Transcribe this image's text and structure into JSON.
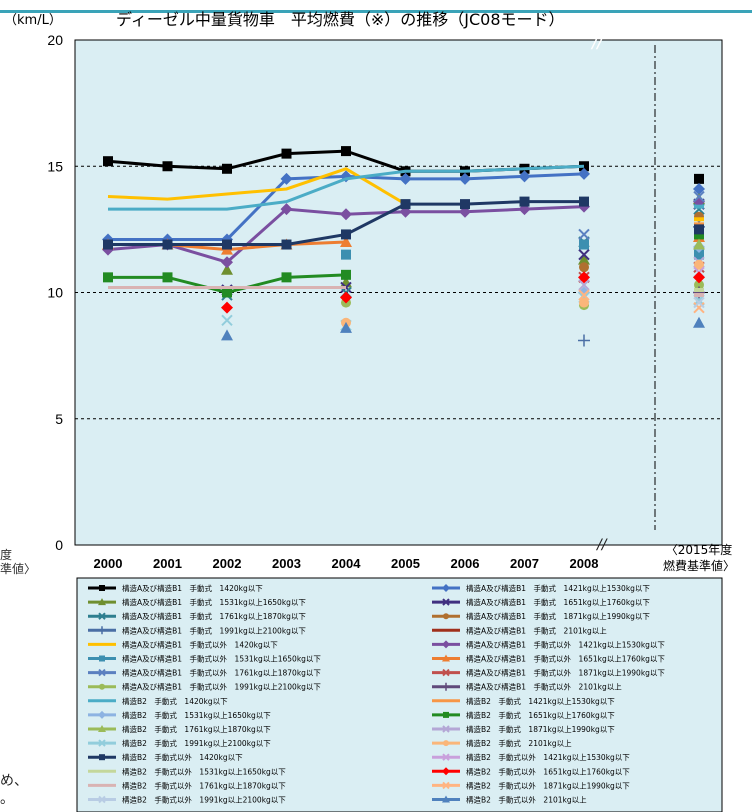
{
  "chart_data": {
    "type": "line",
    "title": "ディーゼル中量貨物車　平均燃費（※）の推移（JC08モード）",
    "unit_label": "（km/L）",
    "ylim": [
      0,
      20
    ],
    "y_ticks": [
      "0",
      "5",
      "10",
      "15",
      "20"
    ],
    "categories": [
      "2000",
      "2001",
      "2002",
      "2003",
      "2004",
      "2005",
      "2006",
      "2007",
      "2008"
    ],
    "standard_label_1": "〈2015年度",
    "standard_label_2": "燃費基準値〉",
    "grid_dashed_at": [
      5,
      10,
      15
    ],
    "series": [
      {
        "name": "構造A及び構造B1　手動式　1420kg以下",
        "color": "#000000",
        "marker": "square",
        "values": [
          15.2,
          15.0,
          14.9,
          15.5,
          15.6,
          14.8,
          14.8,
          14.9,
          15.0
        ],
        "std": 14.5
      },
      {
        "name": "構造A及び構造B1　手動式　1421kg以上1530kg以下",
        "color": "#4472c4",
        "marker": "diamond",
        "values": [
          12.1,
          12.1,
          12.1,
          14.5,
          14.6,
          14.5,
          14.5,
          14.6,
          14.7
        ],
        "std": 14.1
      },
      {
        "name": "構造A及び構造B1　手動式　1531kg以上1650kg以下",
        "color": "#6f8f2f",
        "marker": "triangle",
        "values": [
          null,
          null,
          10.9,
          null,
          10.4,
          null,
          null,
          null,
          11.3
        ],
        "std": 13.7
      },
      {
        "name": "構造A及び構造B1　手動式　1651kg以上1760kg以下",
        "color": "#403080",
        "marker": "x",
        "values": [
          null,
          null,
          10.1,
          null,
          10.2,
          null,
          null,
          null,
          11.5
        ],
        "std": 13.5
      },
      {
        "name": "構造A及び構造B1　手動式　1761kg以上1870kg以下",
        "color": "#2e7f8f",
        "marker": "x",
        "values": [
          null,
          null,
          9.9,
          null,
          10.0,
          null,
          null,
          null,
          12.0
        ],
        "std": 13.3
      },
      {
        "name": "構造A及び構造B1　手動式　1871kg以上1990kg以下",
        "color": "#b07030",
        "marker": "circle",
        "values": [
          null,
          null,
          null,
          null,
          null,
          null,
          null,
          null,
          11.0
        ],
        "std": 13.0
      },
      {
        "name": "構造A及び構造B1　手動式　1991kg以上2100kg以下",
        "color": "#4a6fa5",
        "marker": "plus",
        "values": [
          null,
          null,
          null,
          null,
          null,
          null,
          null,
          null,
          8.1
        ],
        "std": 12.6
      },
      {
        "name": "構造A及び構造B1　手動式　2101kg以上",
        "color": "#a0301c",
        "marker": "line",
        "values": [
          null,
          null,
          null,
          null,
          null,
          null,
          null,
          null,
          null
        ],
        "std": 12.4
      },
      {
        "name": "構造A及び構造B1　手動式以外　1420kg以下",
        "color": "#ffc000",
        "marker": "none",
        "values": [
          13.8,
          13.7,
          13.9,
          14.1,
          14.9,
          13.5,
          null,
          null,
          null
        ],
        "std": 12.9
      },
      {
        "name": "構造A及び構造B1　手動式以外　1421kg以上1530kg以下",
        "color": "#7a4fa0",
        "marker": "diamond",
        "values": [
          11.7,
          11.9,
          11.2,
          13.3,
          13.1,
          13.2,
          13.2,
          13.3,
          13.4
        ],
        "std": 13.6
      },
      {
        "name": "構造A及び構造B1　手動式以外　1531kg以上1650kg以下",
        "color": "#3c8fb0",
        "marker": "square",
        "values": [
          null,
          null,
          null,
          null,
          11.5,
          null,
          null,
          null,
          11.9
        ],
        "std": 11.5
      },
      {
        "name": "構造A及び構造B1　手動式以外　1651kg以上1760kg以下",
        "color": "#ed7d31",
        "marker": "triangle",
        "values": [
          11.9,
          11.9,
          11.7,
          11.9,
          12.0,
          null,
          null,
          null,
          null
        ],
        "std": 12.2
      },
      {
        "name": "構造A及び構造B1　手動式以外　1761kg以上1870kg以下",
        "color": "#5b80c0",
        "marker": "x",
        "values": [
          null,
          null,
          null,
          null,
          null,
          null,
          null,
          null,
          12.3
        ],
        "std": 13.8
      },
      {
        "name": "構造A及び構造B1　手動式以外　1871kg以上1990kg以下",
        "color": "#c0504d",
        "marker": "x",
        "values": [
          null,
          null,
          null,
          null,
          null,
          null,
          null,
          null,
          10.6
        ],
        "std": 11.0
      },
      {
        "name": "構造A及び構造B1　手動式以外　1991kg以上2100kg以下",
        "color": "#9bbb59",
        "marker": "circle",
        "values": [
          null,
          null,
          null,
          null,
          9.6,
          null,
          null,
          null,
          9.5
        ],
        "std": 10.3
      },
      {
        "name": "構造A及び構造B1　手動式以外　2101kg以上",
        "color": "#604a7b",
        "marker": "plus",
        "values": [
          null,
          null,
          null,
          null,
          null,
          null,
          null,
          null,
          null
        ],
        "std": 10.0
      },
      {
        "name": "構造B2　手動式　1420kg以下",
        "color": "#4bacc6",
        "marker": "none",
        "values": [
          13.3,
          13.3,
          13.3,
          13.6,
          14.5,
          14.8,
          14.8,
          14.9,
          15.0
        ],
        "std": 13.4
      },
      {
        "name": "構造B2　手動式　1421kg以上1530kg以下",
        "color": "#f79646",
        "marker": "none",
        "values": [
          null,
          null,
          null,
          null,
          null,
          null,
          null,
          null,
          null
        ],
        "std": 12.7
      },
      {
        "name": "構造B2　手動式　1531kg以上1650kg以下",
        "color": "#8db3e2",
        "marker": "diamond",
        "values": [
          null,
          null,
          null,
          null,
          null,
          null,
          null,
          null,
          10.0
        ],
        "std": 11.8
      },
      {
        "name": "構造B2　手動式　1651kg以上1760kg以下",
        "color": "#228b22",
        "marker": "square",
        "values": [
          10.6,
          10.6,
          10.0,
          10.6,
          10.7,
          null,
          null,
          null,
          null
        ],
        "std": 12.3
      },
      {
        "name": "構造B2　手動式　1761kg以上1870kg以下",
        "color": "#9bbb59",
        "marker": "triangle",
        "values": [
          null,
          null,
          null,
          null,
          null,
          null,
          null,
          null,
          null
        ],
        "std": 11.9
      },
      {
        "name": "構造B2　手動式　1871kg以上1990kg以下",
        "color": "#b4a7d6",
        "marker": "x",
        "values": [
          null,
          null,
          null,
          null,
          null,
          null,
          null,
          null,
          10.3
        ],
        "std": 11.2
      },
      {
        "name": "構造B2　手動式　1991kg以上2100kg以下",
        "color": "#92cddc",
        "marker": "x",
        "values": [
          null,
          null,
          8.9,
          null,
          8.7,
          null,
          null,
          null,
          9.8
        ],
        "std": 9.7
      },
      {
        "name": "構造B2　手動式　2101kg以上",
        "color": "#fab67a",
        "marker": "circle",
        "values": [
          null,
          null,
          null,
          null,
          8.8,
          null,
          null,
          null,
          9.6
        ],
        "std": 11.1
      },
      {
        "name": "構造B2　手動式以外　1420kg以下",
        "color": "#1f3864",
        "marker": "square",
        "values": [
          11.9,
          11.9,
          11.9,
          11.9,
          12.3,
          13.5,
          13.5,
          13.6,
          13.6
        ],
        "std": 12.5
      },
      {
        "name": "構造B2　手動式以外　1421kg以上1530kg以下",
        "color": "#c9a0dc",
        "marker": "x",
        "values": [
          null,
          null,
          null,
          null,
          null,
          null,
          null,
          null,
          null
        ],
        "std": 10.8
      },
      {
        "name": "構造B2　手動式以外　1531kg以上1650kg以下",
        "color": "#c4d79b",
        "marker": "none",
        "values": [
          null,
          null,
          null,
          null,
          null,
          null,
          null,
          null,
          null
        ],
        "std": 10.1
      },
      {
        "name": "構造B2　手動式以外　1651kg以上1760kg以下",
        "color": "#ff0000",
        "marker": "diamond",
        "values": [
          null,
          null,
          9.4,
          null,
          9.8,
          null,
          null,
          null,
          10.6
        ],
        "std": 10.6
      },
      {
        "name": "構造B2　手動式以外　1761kg以上1870kg以下",
        "color": "#d9b3b3",
        "marker": "none",
        "values": [
          10.2,
          10.2,
          10.2,
          10.2,
          10.2,
          null,
          null,
          null,
          null
        ],
        "std": 9.9
      },
      {
        "name": "構造B2　手動式以外　1871kg以上1990kg以下",
        "color": "#ffb482",
        "marker": "x",
        "values": [
          null,
          null,
          null,
          null,
          null,
          null,
          null,
          null,
          9.9
        ],
        "std": 9.4
      },
      {
        "name": "構造B2　手動式以外　1991kg以上2100kg以下",
        "color": "#b8cce4",
        "marker": "x",
        "values": [
          null,
          null,
          null,
          null,
          null,
          null,
          null,
          null,
          null
        ],
        "std": 9.6
      },
      {
        "name": "構造B2　手動式以外　2101kg以上",
        "color": "#4f81bd",
        "marker": "triangle",
        "values": [
          null,
          null,
          8.3,
          null,
          8.6,
          null,
          null,
          null,
          null
        ],
        "std": 8.8
      }
    ]
  },
  "side_text": {
    "left_top": "度",
    "left_bottom": "準値〉",
    "bottom_1": "め、",
    "bottom_2": "。"
  }
}
